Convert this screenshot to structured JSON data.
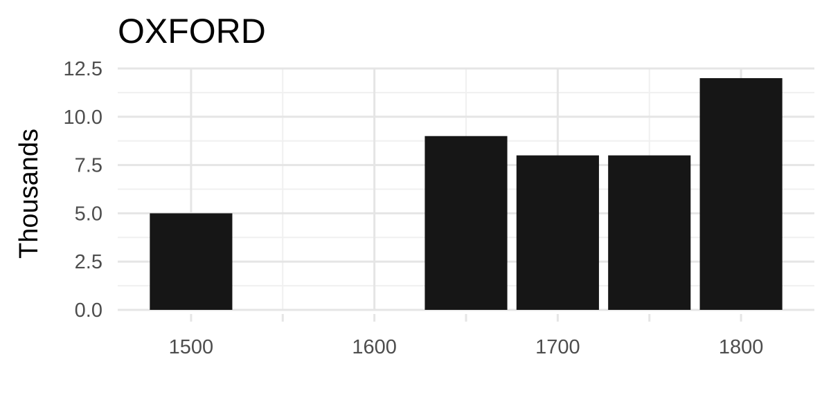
{
  "chart_data": {
    "type": "bar",
    "title": "OXFORD",
    "xlabel": "",
    "ylabel": "Thousands",
    "x": [
      1500,
      1650,
      1700,
      1750,
      1800
    ],
    "values": [
      5,
      9,
      8,
      8,
      12
    ],
    "bar_width_years": 45,
    "xlim": [
      1460,
      1840
    ],
    "ylim": [
      0,
      12.5
    ],
    "x_ticks": [
      1500,
      1600,
      1700,
      1800
    ],
    "x_ticks_minor": [
      1550,
      1650,
      1750
    ],
    "y_ticks": [
      0,
      2.5,
      5,
      7.5,
      10,
      12.5
    ],
    "y_tick_labels": [
      "0.0",
      "2.5",
      "5.0",
      "7.5",
      "10.0",
      "12.5"
    ],
    "x_tick_labels": [
      "1500",
      "1600",
      "1700",
      "1800"
    ],
    "grid": true,
    "legend": "none",
    "bar_color": "#161616"
  }
}
